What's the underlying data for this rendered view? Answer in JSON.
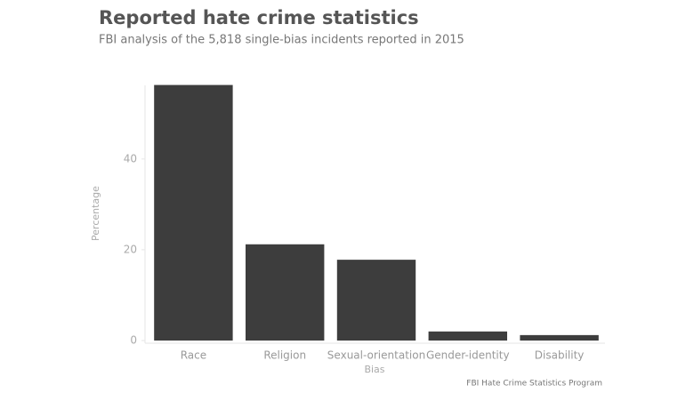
{
  "chart_data": {
    "type": "bar",
    "title": "Reported hate crime statistics",
    "subtitle": "FBI analysis of the 5,818 single-bias incidents reported in 2015",
    "x_label": "Bias",
    "y_label": "Percentage",
    "caption": "FBI Hate Crime Statistics Program",
    "categories": [
      "Race",
      "Religion",
      "Sexual-orientation",
      "Gender-identity",
      "Disability"
    ],
    "values": [
      56.3,
      21.2,
      17.8,
      2.0,
      1.2
    ],
    "color": "#3d3d3d",
    "ylim": [
      0,
      57
    ],
    "yticks": [
      0,
      20,
      40
    ],
    "grid": false
  }
}
